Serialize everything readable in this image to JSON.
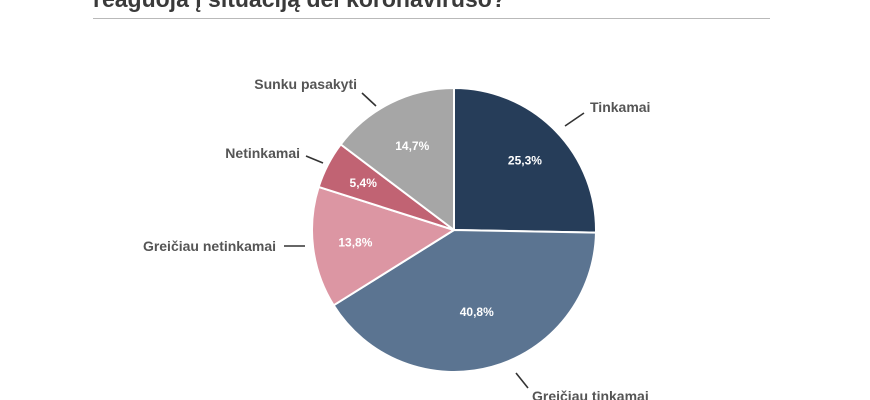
{
  "header": {
    "title": "reaguoja į situaciją dėl koronaviruso?"
  },
  "chart_data": {
    "type": "pie",
    "title": "reaguoja į situaciją dėl koronaviruso?",
    "slices": [
      {
        "label": "Tinkamai",
        "value": 25.3,
        "display": "25,3%",
        "color": "#263d59"
      },
      {
        "label": "Greičiau tinkamai",
        "value": 40.8,
        "display": "40,8%",
        "color": "#5b7491"
      },
      {
        "label": "Greičiau netinkamai",
        "value": 13.8,
        "display": "13,8%",
        "color": "#dc96a3"
      },
      {
        "label": "Netinkamai",
        "value": 5.4,
        "display": "5,4%",
        "color": "#c16373"
      },
      {
        "label": "Sunku pasakyti",
        "value": 14.7,
        "display": "14,7%",
        "color": "#a6a6a6"
      }
    ]
  }
}
